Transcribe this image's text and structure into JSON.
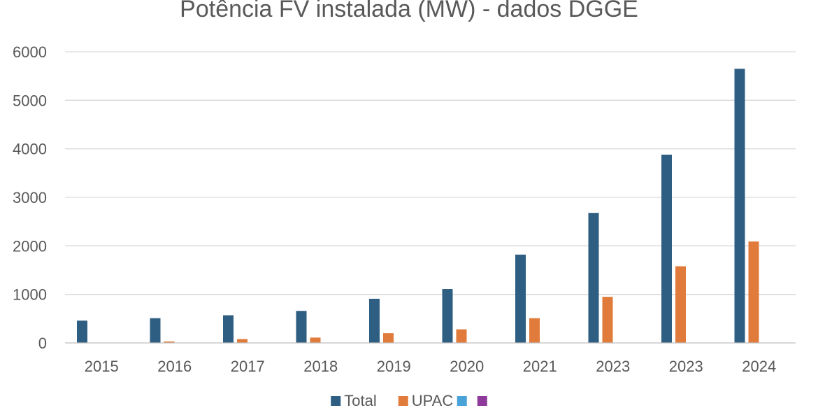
{
  "chart_data": {
    "type": "bar",
    "title": "Potência FV instalada (MW) - dados DGGE",
    "xlabel": "",
    "ylabel": "",
    "ylim": [
      0,
      6000
    ],
    "yticks": [
      0,
      1000,
      2000,
      3000,
      4000,
      5000,
      6000
    ],
    "grid": true,
    "legend_position": "bottom",
    "categories": [
      "2015",
      "2016",
      "2017",
      "2018",
      "2019",
      "2020",
      "2021",
      "2023",
      "2023",
      "2024"
    ],
    "series": [
      {
        "name": "Total",
        "color": "#2e5e82",
        "values": [
          460,
          510,
          570,
          660,
          910,
          1110,
          1820,
          2680,
          3880,
          5650
        ]
      },
      {
        "name": "UPAC",
        "color": "#e07b3c",
        "values": [
          0,
          30,
          80,
          110,
          200,
          280,
          510,
          950,
          1580,
          2090
        ]
      },
      {
        "name": "",
        "color": "#4aa3d8",
        "values": [
          0,
          0,
          0,
          0,
          0,
          0,
          0,
          0,
          0,
          0
        ]
      },
      {
        "name": "",
        "color": "#8e3a9a",
        "values": [
          0,
          0,
          0,
          0,
          0,
          0,
          0,
          0,
          0,
          0
        ]
      }
    ]
  }
}
